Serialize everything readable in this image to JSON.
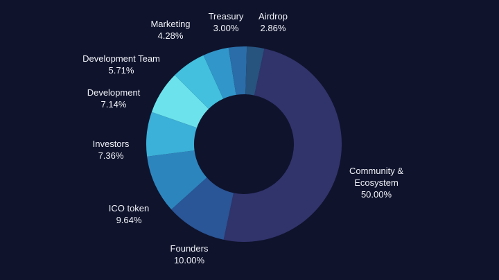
{
  "chart_data": {
    "type": "pie",
    "variant": "donut",
    "background": "#0f132c",
    "slices": [
      {
        "label": "Community &\nEcosystem",
        "value": 50.0,
        "display": "50.00%",
        "color": "#31336b"
      },
      {
        "label": "Founders",
        "value": 10.0,
        "display": "10.00%",
        "color": "#2a5596"
      },
      {
        "label": "ICO token",
        "value": 9.64,
        "display": "9.64%",
        "color": "#2d85be"
      },
      {
        "label": "Investors",
        "value": 7.36,
        "display": "7.36%",
        "color": "#3bb0d8"
      },
      {
        "label": "Development",
        "value": 7.14,
        "display": "7.14%",
        "color": "#6ce3ec"
      },
      {
        "label": "Development Team",
        "value": 5.71,
        "display": "5.71%",
        "color": "#42c0de"
      },
      {
        "label": "Marketing",
        "value": 4.28,
        "display": "4.28%",
        "color": "#3196c9"
      },
      {
        "label": "Treasury",
        "value": 3.0,
        "display": "3.00%",
        "color": "#2a6da9"
      },
      {
        "label": "Airdrop",
        "value": 2.86,
        "display": "2.86%",
        "color": "#27537f"
      }
    ]
  }
}
